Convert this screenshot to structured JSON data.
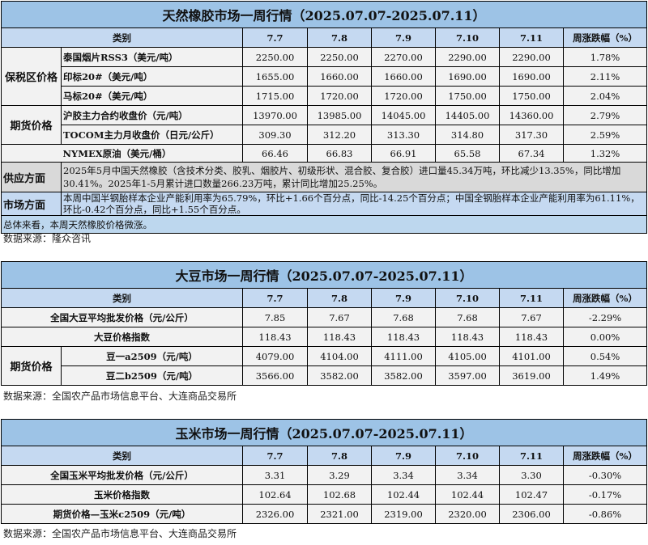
{
  "rubber": {
    "title": "天然橡胶市场一周行情（2025.07.07-2025.07.11）",
    "header": [
      "类别",
      "7.7",
      "7.8",
      "7.9",
      "7.10",
      "7.11",
      "周涨跌幅（%）"
    ],
    "groups": [
      {
        "label": "保税区价格",
        "rows": [
          {
            "item": "泰国烟片RSS3（美元/吨）",
            "values": [
              "2250.00",
              "2250.00",
              "2270.00",
              "2290.00",
              "2290.00"
            ],
            "change": "1.78%"
          },
          {
            "item": "印标20#（美元/吨）",
            "values": [
              "1655.00",
              "1660.00",
              "1660.00",
              "1690.00",
              "1690.00"
            ],
            "change": "2.11%"
          },
          {
            "item": "马标20#（美元/吨）",
            "values": [
              "1715.00",
              "1720.00",
              "1720.00",
              "1750.00",
              "1750.00"
            ],
            "change": "2.04%"
          }
        ]
      },
      {
        "label": "期货价格",
        "rows": [
          {
            "item": "沪胶主力合约收盘价（元/吨）",
            "values": [
              "13970.00",
              "13985.00",
              "14045.00",
              "14405.00",
              "14360.00"
            ],
            "change": "2.79%"
          },
          {
            "item": "TOCOM主力月收盘价（日元/公斤）",
            "values": [
              "309.30",
              "312.20",
              "313.30",
              "314.80",
              "317.30"
            ],
            "change": "2.59%"
          }
        ]
      }
    ],
    "nymex": {
      "item": "NYMEX原油（美元/桶）",
      "values": [
        "66.46",
        "66.83",
        "66.91",
        "65.58",
        "67.34"
      ],
      "change": "1.32%"
    },
    "supply": {
      "label": "供应方面",
      "text": "2025年5月中国天然橡胶（含技术分类、胶乳、烟胶片、初级形状、混合胶、复合胶）进口量45.34万吨，环比减少13.35%，同比增加30.41%。2025年1-5月累计进口数量266.23万吨，累计同比增加25.25%。"
    },
    "market": {
      "label": "市场方面",
      "text": "本周中国半钢胎样本企业产能利用率为65.79%，环比+1.66个百分点，同比-14.25个百分点；中国全钢胎样本企业产能利用率为61.11%，环比-0.42个百分点，同比+1.55个百分点。"
    },
    "summary": "总体来看，本周天然橡胶价格微涨。",
    "source": "数据来源：隆众咨讯"
  },
  "soy": {
    "title": "大豆市场一周行情（2025.07.07-2025.07.11）",
    "header": [
      "类别",
      "7.7",
      "7.8",
      "7.9",
      "7.10",
      "7.11",
      "周涨跌幅（%）"
    ],
    "rows": [
      {
        "item": "全国大豆平均批发价格（元/公斤）",
        "values": [
          "7.85",
          "7.67",
          "7.68",
          "7.68",
          "7.67"
        ],
        "change": "-2.29%"
      },
      {
        "item": "大豆价格指数",
        "values": [
          "118.43",
          "118.43",
          "118.43",
          "118.43",
          "118.43"
        ],
        "change": "0.00%"
      }
    ],
    "futures": {
      "label": "期货价格",
      "rows": [
        {
          "item": "豆一a2509（元/吨）",
          "values": [
            "4079.00",
            "4104.00",
            "4111.00",
            "4105.00",
            "4101.00"
          ],
          "change": "0.54%"
        },
        {
          "item": "豆二b2509（元/吨）",
          "values": [
            "3566.00",
            "3582.00",
            "3582.00",
            "3597.00",
            "3619.00"
          ],
          "change": "1.49%"
        }
      ]
    },
    "source": "数据来源：全国农产品市场信息平台、大连商品交易所"
  },
  "corn": {
    "title": "玉米市场一周行情（2025.07.07-2025.07.11）",
    "header": [
      "类别",
      "7.7",
      "7.8",
      "7.9",
      "7.10",
      "7.11",
      "周涨跌幅（%）"
    ],
    "rows": [
      {
        "item": "全国玉米平均批发价格（元/公斤）",
        "values": [
          "3.31",
          "3.29",
          "3.34",
          "3.34",
          "3.30"
        ],
        "change": "-0.30%"
      },
      {
        "item": "玉米价格指数",
        "values": [
          "102.64",
          "102.68",
          "102.44",
          "102.44",
          "102.47"
        ],
        "change": "-0.17%"
      },
      {
        "item": "期货价格—玉米c2509（元/吨）",
        "values": [
          "2326.00",
          "2321.00",
          "2319.00",
          "2320.00",
          "2306.00"
        ],
        "change": "-0.86%"
      }
    ],
    "source": "数据来源：全国农产品市场信息平台、大连商品交易所"
  }
}
